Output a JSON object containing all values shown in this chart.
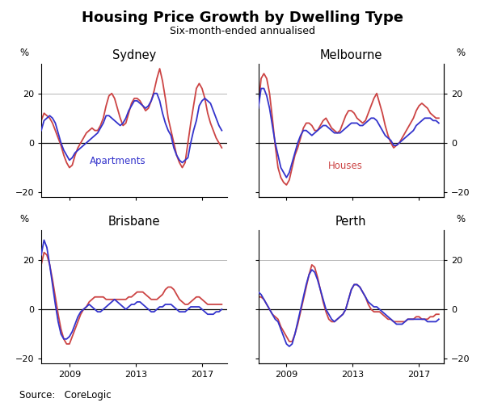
{
  "title": "Housing Price Growth by Dwelling Type",
  "subtitle": "Six-month-ended annualised",
  "source": "Source:   CoreLogic",
  "apartments_label": "Apartments",
  "houses_label": "Houses",
  "apartments_color": "#3333CC",
  "houses_color": "#CC4444",
  "ylim": [
    -22,
    32
  ],
  "yticks": [
    -20,
    0,
    20
  ],
  "xticks": [
    2009,
    2013,
    2017
  ],
  "xmin": 2007.3,
  "xmax": 2018.5,
  "grid_color": "#aaaaaa",
  "line_width": 1.3,
  "sydney_apartments": [
    5,
    9,
    10,
    11,
    10,
    8,
    4,
    0,
    -3,
    -5,
    -7,
    -6,
    -4,
    -3,
    -2,
    -1,
    0,
    1,
    2,
    3,
    4,
    6,
    8,
    11,
    11,
    10,
    9,
    8,
    7,
    8,
    10,
    13,
    15,
    17,
    17,
    16,
    15,
    14,
    15,
    17,
    20,
    20,
    17,
    12,
    8,
    5,
    3,
    -2,
    -5,
    -7,
    -8,
    -7,
    -6,
    0,
    5,
    9,
    15,
    17,
    18,
    17,
    16,
    13,
    10,
    7,
    5
  ],
  "sydney_houses": [
    9,
    12,
    11,
    10,
    8,
    5,
    2,
    -1,
    -5,
    -8,
    -10,
    -9,
    -5,
    -2,
    0,
    2,
    4,
    5,
    6,
    5,
    5,
    7,
    10,
    15,
    19,
    20,
    18,
    14,
    10,
    7,
    8,
    12,
    16,
    18,
    18,
    17,
    15,
    13,
    14,
    17,
    21,
    26,
    30,
    25,
    18,
    10,
    5,
    0,
    -5,
    -8,
    -10,
    -8,
    0,
    8,
    15,
    22,
    24,
    22,
    18,
    12,
    8,
    5,
    2,
    0,
    -2
  ],
  "melbourne_apartments": [
    14,
    22,
    22,
    19,
    14,
    7,
    0,
    -5,
    -10,
    -12,
    -14,
    -12,
    -8,
    -4,
    0,
    3,
    5,
    5,
    4,
    3,
    4,
    5,
    6,
    7,
    7,
    6,
    5,
    4,
    4,
    4,
    5,
    6,
    7,
    8,
    8,
    8,
    7,
    7,
    8,
    9,
    10,
    10,
    9,
    7,
    5,
    3,
    2,
    1,
    -1,
    -1,
    0,
    1,
    2,
    3,
    4,
    5,
    7,
    8,
    9,
    10,
    10,
    10,
    9,
    9,
    8
  ],
  "melbourne_houses": [
    14,
    26,
    28,
    26,
    20,
    10,
    -1,
    -10,
    -14,
    -16,
    -17,
    -15,
    -10,
    -5,
    -2,
    2,
    6,
    8,
    8,
    7,
    5,
    5,
    7,
    9,
    10,
    8,
    6,
    5,
    4,
    5,
    8,
    11,
    13,
    13,
    12,
    10,
    9,
    8,
    9,
    12,
    15,
    18,
    20,
    16,
    12,
    7,
    3,
    0,
    -2,
    -1,
    0,
    2,
    4,
    6,
    8,
    10,
    13,
    15,
    16,
    15,
    14,
    12,
    11,
    10,
    10
  ],
  "brisbane_apartments": [
    22,
    28,
    25,
    18,
    10,
    2,
    -5,
    -10,
    -12,
    -12,
    -11,
    -9,
    -6,
    -3,
    -1,
    0,
    1,
    2,
    1,
    0,
    -1,
    -1,
    0,
    1,
    2,
    3,
    4,
    3,
    2,
    1,
    0,
    1,
    2,
    2,
    3,
    3,
    2,
    1,
    0,
    -1,
    -1,
    0,
    1,
    1,
    2,
    2,
    2,
    1,
    0,
    -1,
    -1,
    -1,
    0,
    1,
    1,
    1,
    1,
    0,
    -1,
    -2,
    -2,
    -2,
    -1,
    -1,
    0
  ],
  "brisbane_houses": [
    18,
    23,
    22,
    18,
    12,
    5,
    -2,
    -8,
    -12,
    -14,
    -14,
    -11,
    -8,
    -5,
    -2,
    0,
    1,
    3,
    4,
    5,
    5,
    5,
    5,
    4,
    4,
    4,
    4,
    4,
    4,
    4,
    4,
    5,
    5,
    6,
    7,
    7,
    7,
    6,
    5,
    4,
    4,
    4,
    5,
    6,
    8,
    9,
    9,
    8,
    6,
    4,
    3,
    2,
    2,
    3,
    4,
    5,
    5,
    4,
    3,
    2,
    2,
    2,
    2,
    2,
    2
  ],
  "perth_apartments": [
    7,
    6,
    4,
    2,
    0,
    -2,
    -4,
    -5,
    -8,
    -11,
    -14,
    -15,
    -14,
    -10,
    -5,
    0,
    5,
    10,
    14,
    16,
    15,
    12,
    8,
    4,
    0,
    -2,
    -4,
    -5,
    -4,
    -3,
    -2,
    0,
    4,
    8,
    10,
    10,
    9,
    7,
    5,
    3,
    2,
    1,
    1,
    0,
    -1,
    -2,
    -3,
    -4,
    -5,
    -6,
    -6,
    -6,
    -5,
    -4,
    -4,
    -4,
    -4,
    -4,
    -4,
    -4,
    -5,
    -5,
    -5,
    -5,
    -4
  ],
  "perth_houses": [
    5,
    5,
    4,
    2,
    0,
    -2,
    -3,
    -4,
    -7,
    -9,
    -11,
    -13,
    -13,
    -10,
    -6,
    -1,
    4,
    9,
    14,
    18,
    17,
    13,
    8,
    3,
    -1,
    -4,
    -5,
    -5,
    -4,
    -3,
    -2,
    0,
    4,
    8,
    10,
    10,
    9,
    7,
    5,
    2,
    0,
    -1,
    -1,
    -1,
    -2,
    -3,
    -4,
    -4,
    -5,
    -5,
    -5,
    -5,
    -5,
    -4,
    -4,
    -4,
    -3,
    -3,
    -4,
    -4,
    -4,
    -3,
    -3,
    -2,
    -2
  ]
}
